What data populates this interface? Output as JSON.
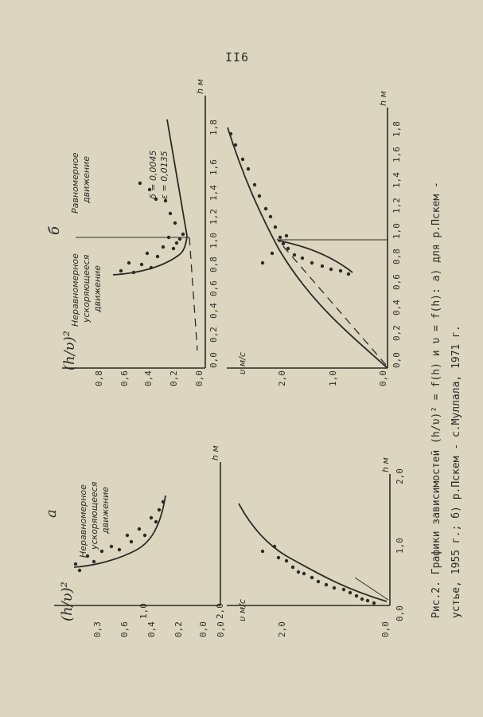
{
  "page": {
    "number": "II6"
  },
  "caption": {
    "line1": "Рис.2. Графики зависимостей (h/υ)² = f(h)  и  υ = f(h): а) для р.Пскем -",
    "line2": "устье, 1955 г.; б) р.Пскем - с.Муллала, 1971 г."
  },
  "panel_a": {
    "letter": "а",
    "top": {
      "xlabel": "h м",
      "ylabel": "(h/υ)²",
      "x_ticks": [
        "0,0",
        "1,0",
        "2,0"
      ],
      "y_ticks": [
        "0,0",
        "0,2",
        "0,4",
        "0,6",
        "0,3"
      ],
      "note": [
        "Неравномерное",
        "ускоряющееся",
        "движение"
      ]
    },
    "bottom": {
      "xlabel": "h м",
      "ylabel": "υ м/с",
      "x_ticks": [
        "0,0",
        "1,0",
        "2,0"
      ],
      "y_ticks": [
        "0,0",
        "2,0"
      ]
    }
  },
  "panel_b": {
    "letter": "б",
    "top": {
      "xlabel": "h м",
      "ylabel": "(h/υ)²",
      "x_ticks": [
        "0,0",
        "0,2",
        "0,4",
        "0,6",
        "0,8",
        "1,0",
        "1,2",
        "1,4",
        "1,6",
        "1,8"
      ],
      "y_ticks": [
        "0,0",
        "0,2",
        "0,4",
        "0,6",
        "0,8"
      ],
      "note_left": [
        "Неравномерное",
        "ускоряющееся",
        "движение"
      ],
      "note_right": [
        "Равномерное",
        "движение"
      ],
      "params": [
        "δ = 0,0045",
        "ε = 0,0135"
      ]
    },
    "bottom": {
      "xlabel": "h м",
      "ylabel": "υ м/с",
      "x_ticks": [
        "0,0",
        "0,2",
        "0,4",
        "0,6",
        "0,8",
        "1,0",
        "1,2",
        "1,4",
        "1,6",
        "1,8"
      ],
      "y_ticks": [
        "0,0",
        "1,0",
        "2,0"
      ]
    }
  },
  "style": {
    "ink": "#2b2a26",
    "paper": "#dcd6c0"
  }
}
